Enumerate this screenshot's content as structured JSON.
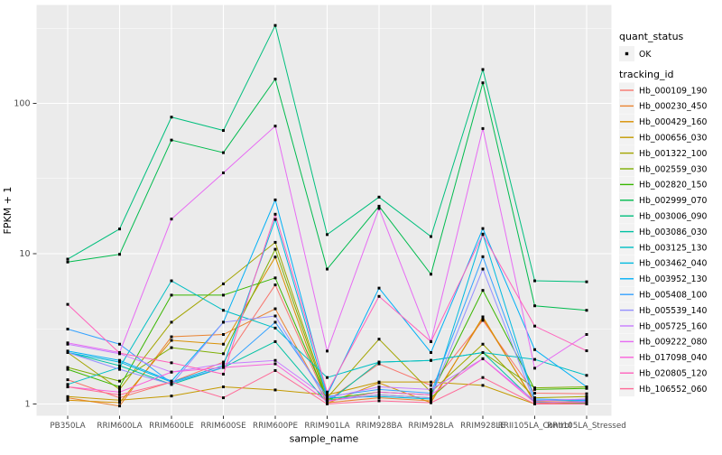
{
  "chart_data": {
    "type": "line",
    "title": "",
    "xlabel": "sample_name",
    "ylabel": "FPKM + 1",
    "y_scale": "log10",
    "y_ticks": [
      1,
      10,
      100
    ],
    "y_minor": [
      3.162,
      31.62,
      316.2
    ],
    "ylim": [
      0.95,
      430
    ],
    "grid": "on",
    "legend_position": "right",
    "point_marker": "black-square",
    "categories": [
      "PB350LA",
      "RRIM600LA",
      "RRIM600LE",
      "RRIM600SE",
      "RRIM600PE",
      "RRIM901LA",
      "RRIM928BA",
      "RRIM928LA",
      "RRIM928LE",
      "RRII105LA_Control",
      "RRII105LA_Stressed"
    ],
    "series": [
      {
        "name": "Hb_000109_190",
        "color": "#F8766D",
        "values": [
          1.45,
          1.1,
          1.4,
          1.9,
          6.2,
          1.05,
          1.85,
          1.33,
          3.6,
          1.18,
          1.17
        ]
      },
      {
        "name": "Hb_000230_450",
        "color": "#EA8331",
        "values": [
          1.1,
          0.97,
          2.8,
          2.9,
          4.3,
          1.02,
          1.1,
          1.05,
          3.7,
          1.04,
          1.03
        ]
      },
      {
        "name": "Hb_000429_160",
        "color": "#D89000",
        "values": [
          1.06,
          1.02,
          2.65,
          2.5,
          9.5,
          1.01,
          1.38,
          1.02,
          3.8,
          1.02,
          1.01
        ]
      },
      {
        "name": "Hb_000656_030",
        "color": "#C49A00",
        "values": [
          1.12,
          1.06,
          1.13,
          1.3,
          1.24,
          1.15,
          1.4,
          1.4,
          1.33,
          1.0,
          1.06
        ]
      },
      {
        "name": "Hb_001322_100",
        "color": "#A3A500",
        "values": [
          2.2,
          1.25,
          3.5,
          6.3,
          11.9,
          1.1,
          2.7,
          1.2,
          2.5,
          1.1,
          1.12
        ]
      },
      {
        "name": "Hb_002559_030",
        "color": "#7CAE00",
        "values": [
          1.75,
          1.42,
          2.37,
          2.16,
          10.7,
          1.06,
          1.15,
          1.1,
          2.2,
          1.28,
          1.3
        ]
      },
      {
        "name": "Hb_002820_150",
        "color": "#39B600",
        "values": [
          1.7,
          1.3,
          5.3,
          5.3,
          6.9,
          1.08,
          1.2,
          1.15,
          5.7,
          1.25,
          1.27
        ]
      },
      {
        "name": "Hb_002999_070",
        "color": "#00BB4E",
        "values": [
          8.8,
          9.9,
          57,
          47,
          145,
          7.9,
          20.7,
          7.3,
          137,
          4.5,
          4.2
        ]
      },
      {
        "name": "Hb_003006_090",
        "color": "#00BF7D",
        "values": [
          9.2,
          14.6,
          81,
          66,
          330,
          13.4,
          23.8,
          13.0,
          168,
          6.6,
          6.5
        ]
      },
      {
        "name": "Hb_003086_030",
        "color": "#00C1A3",
        "values": [
          2.2,
          1.8,
          1.35,
          1.75,
          2.6,
          1.02,
          1.9,
          1.95,
          2.2,
          1.03,
          1.02
        ]
      },
      {
        "name": "Hb_003125_130",
        "color": "#00BFC4",
        "values": [
          1.35,
          1.75,
          6.6,
          4.2,
          3.2,
          1.5,
          1.9,
          1.95,
          2.2,
          1.98,
          1.55
        ]
      },
      {
        "name": "Hb_003462_040",
        "color": "#00BAE0",
        "values": [
          2.2,
          1.9,
          1.4,
          1.8,
          16.9,
          1.1,
          1.12,
          1.08,
          13.5,
          1.06,
          1.05
        ]
      },
      {
        "name": "Hb_003952_130",
        "color": "#00B0F6",
        "values": [
          2.25,
          1.95,
          1.42,
          3.5,
          22.8,
          1.15,
          5.9,
          2.2,
          14.7,
          2.3,
          1.3
        ]
      },
      {
        "name": "Hb_005408_100",
        "color": "#35A2FF",
        "values": [
          3.15,
          2.5,
          1.38,
          1.75,
          3.5,
          1.12,
          1.25,
          1.18,
          9.55,
          1.08,
          1.06
        ]
      },
      {
        "name": "Hb_005539_140",
        "color": "#9590FF",
        "values": [
          2.2,
          1.7,
          1.35,
          3.5,
          3.85,
          1.05,
          1.15,
          1.1,
          7.9,
          1.02,
          1.04
        ]
      },
      {
        "name": "Hb_005725_160",
        "color": "#C77CFF",
        "values": [
          2.5,
          2.16,
          1.63,
          1.85,
          1.95,
          1.1,
          1.3,
          1.25,
          2.0,
          1.05,
          1.08
        ]
      },
      {
        "name": "Hb_009222_080",
        "color": "#E76BF3",
        "values": [
          2.55,
          2.2,
          17.0,
          34.5,
          70.6,
          2.25,
          20.0,
          2.6,
          68,
          1.73,
          2.9
        ]
      },
      {
        "name": "Hb_017098_040",
        "color": "#FA62DB",
        "values": [
          1.3,
          1.2,
          1.63,
          1.75,
          1.85,
          1.04,
          1.2,
          1.15,
          2.0,
          1.02,
          1.03
        ]
      },
      {
        "name": "Hb_020805_120",
        "color": "#FF62BC",
        "values": [
          4.6,
          2.18,
          1.88,
          1.58,
          18.3,
          1.2,
          5.2,
          2.6,
          13.4,
          3.3,
          2.26
        ]
      },
      {
        "name": "Hb_106552_060",
        "color": "#FF6A98",
        "values": [
          1.3,
          1.15,
          1.4,
          1.1,
          1.67,
          1.0,
          1.05,
          1.02,
          1.5,
          1.0,
          1.0
        ]
      }
    ]
  },
  "legend": {
    "quant_status": {
      "title": "quant_status",
      "items": [
        {
          "label": "OK",
          "marker": "point",
          "color": "#000000"
        }
      ]
    },
    "tracking_id": {
      "title": "tracking_id"
    }
  },
  "style": {
    "panel_bg": "#EBEBEB",
    "grid": "#FFFFFF",
    "tick_label": "#4D4D4D",
    "tick_mark": "#333333",
    "text": "#000000",
    "legend_key_bg": "#F2F2F2",
    "point": "#000000"
  }
}
